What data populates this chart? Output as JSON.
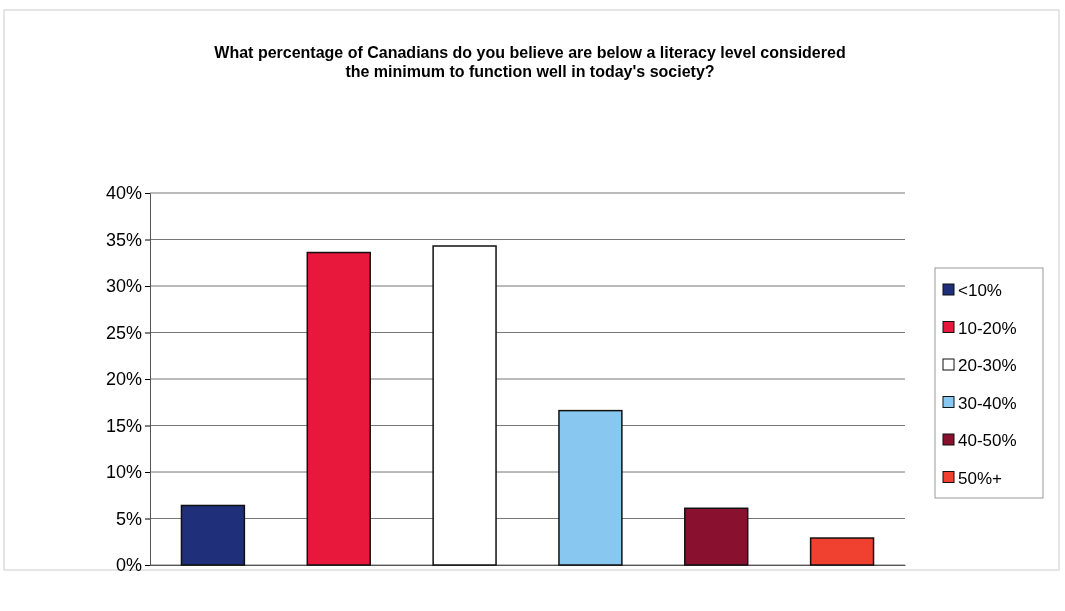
{
  "chart_data": {
    "type": "bar",
    "title": "What percentage of Canadians do you believe are below a literacy level considered the minimum to function well in today's society?",
    "categories": [
      null
    ],
    "series": [
      {
        "name": "<10%",
        "color": "#1f2f7a",
        "values": [
          0.064
        ]
      },
      {
        "name": "10-20%",
        "color": "#e8183c",
        "values": [
          0.336
        ]
      },
      {
        "name": "20-30%",
        "color": "#ffffff",
        "values": [
          0.343
        ]
      },
      {
        "name": "30-40%",
        "color": "#88c8f0",
        "values": [
          0.166
        ]
      },
      {
        "name": "40-50%",
        "color": "#8a1030",
        "values": [
          0.061
        ]
      },
      {
        "name": "50%+",
        "color": "#f04030",
        "values": [
          0.029
        ]
      }
    ],
    "ylim": [
      0,
      0.4
    ],
    "yticks": [
      {
        "value": 0,
        "label": "0%"
      },
      {
        "value": 0.05,
        "label": "5%"
      },
      {
        "value": 0.1,
        "label": "10%"
      },
      {
        "value": 0.15,
        "label": "15%"
      },
      {
        "value": 0.2,
        "label": "20%"
      },
      {
        "value": 0.25,
        "label": "25%"
      },
      {
        "value": 0.3,
        "label": "30%"
      },
      {
        "value": 0.35,
        "label": "35%"
      },
      {
        "value": 0.4,
        "label": "40%"
      }
    ],
    "grid": "y",
    "legend": "right",
    "tick_labels": "y"
  }
}
